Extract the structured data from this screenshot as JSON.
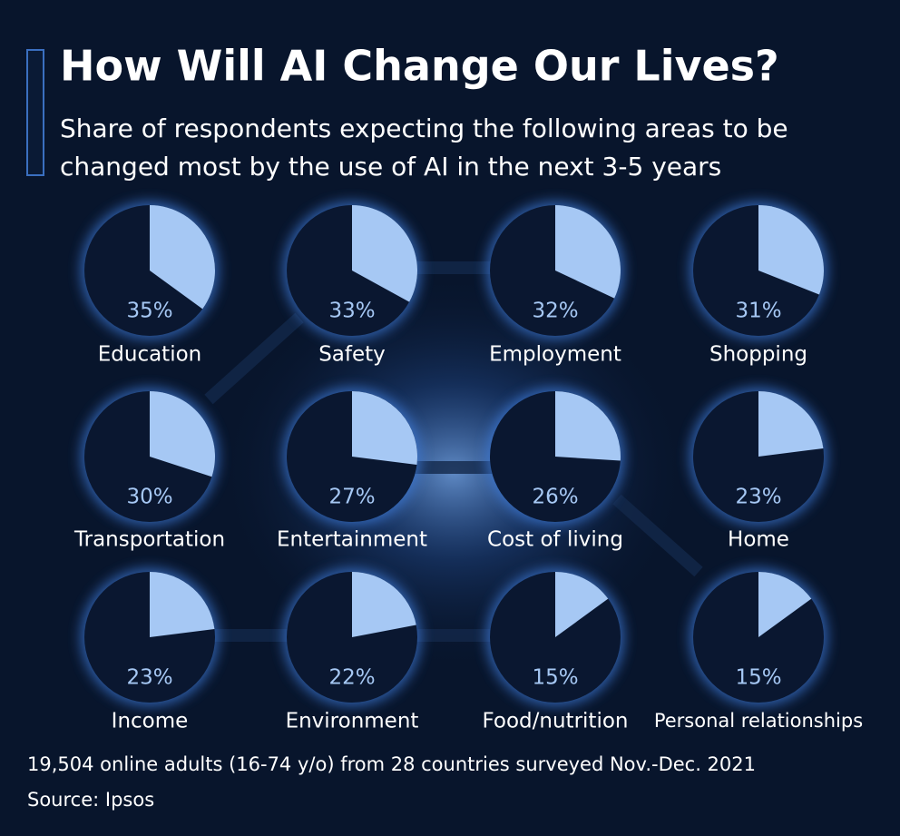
{
  "chart_data": {
    "type": "pie",
    "title": "How Will AI Change Our Lives?",
    "subtitle": [
      "Share of respondents expecting the following areas to be",
      "changed most by the use of AI in the next 3-5 years"
    ],
    "categories": [
      "Education",
      "Safety",
      "Employment",
      "Shopping",
      "Transportation",
      "Entertainment",
      "Cost of living",
      "Home",
      "Income",
      "Environment",
      "Food/nutrition",
      "Personal relationships"
    ],
    "values": [
      35,
      33,
      32,
      31,
      30,
      27,
      26,
      23,
      23,
      22,
      15,
      15
    ],
    "value_labels": [
      "35%",
      "33%",
      "32%",
      "31%",
      "30%",
      "27%",
      "26%",
      "23%",
      "23%",
      "22%",
      "15%",
      "15%"
    ],
    "color": "#a6c8f4",
    "note": "19,504 online adults (16-74 y/o) from 28 countries surveyed Nov.-Dec. 2021",
    "source": "Source: Ipsos"
  }
}
